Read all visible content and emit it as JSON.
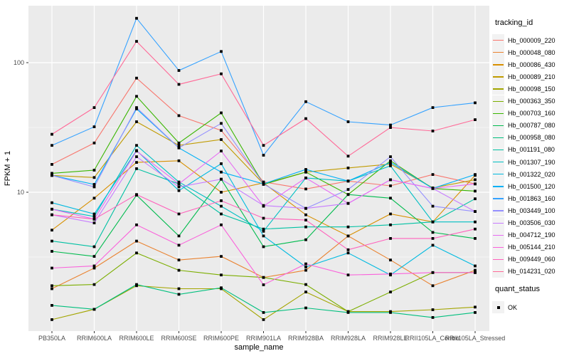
{
  "chart_data": {
    "type": "line",
    "title": "",
    "xlabel": "sample_name",
    "ylabel": "FPKM + 1",
    "y_scale": "log10",
    "y_axis_ticks": [
      "10",
      "100"
    ],
    "y_tick_values": [
      10,
      100
    ],
    "y_minor_tick_values": [
      3.1623,
      31.623
    ],
    "ylim": [
      0.85,
      280
    ],
    "grid": "on",
    "legend_position": "right",
    "marker": {
      "shape": "square",
      "color": "#000000",
      "meaning": "quant_status OK"
    },
    "categories": [
      "PB350LA",
      "RRIM600LA",
      "RRIM600LE",
      "RRIM600SE",
      "RRIM600PE",
      "RRIM901LA",
      "RRIM928BA",
      "RRIM928LA",
      "RRIM928LE",
      "RRII105LA_Control",
      "RRII105LA_Stressed"
    ],
    "series": [
      {
        "name": "Hb_000009_220",
        "color": "#F8766D",
        "values": [
          16.4,
          24,
          76,
          39,
          30,
          12,
          10.6,
          12.2,
          11.2,
          13.7,
          11.6
        ]
      },
      {
        "name": "Hb_000048_080",
        "color": "#EA8331",
        "values": [
          1.8,
          2.6,
          4.2,
          3.0,
          3.2,
          2.2,
          2.5,
          4.6,
          3.0,
          1.9,
          2.5
        ]
      },
      {
        "name": "Hb_000086_430",
        "color": "#D89000",
        "values": [
          5.1,
          9.0,
          17.0,
          17.5,
          10.0,
          11.8,
          6.7,
          4.6,
          6.8,
          5.9,
          13.5
        ]
      },
      {
        "name": "Hb_000089_210",
        "color": "#C09B00",
        "values": [
          13.5,
          13.0,
          35.0,
          23.0,
          25.5,
          11.6,
          14.3,
          15.4,
          16.5,
          10.8,
          12.5
        ]
      },
      {
        "name": "Hb_000098_150",
        "color": "#A3A500",
        "values": [
          1.04,
          1.25,
          1.9,
          1.8,
          1.8,
          1.04,
          1.7,
          1.2,
          1.2,
          1.24,
          1.3
        ]
      },
      {
        "name": "Hb_000363_350",
        "color": "#7CAE00",
        "values": [
          1.9,
          1.94,
          3.4,
          2.5,
          2.3,
          2.2,
          1.94,
          1.2,
          1.7,
          2.4,
          2.4
        ]
      },
      {
        "name": "Hb_000703_160",
        "color": "#39B600",
        "values": [
          14.0,
          14.8,
          55.0,
          24.0,
          41.0,
          11.5,
          14.3,
          9.6,
          17.5,
          10.7,
          10.2
        ]
      },
      {
        "name": "Hb_000787_080",
        "color": "#00BB4E",
        "values": [
          3.5,
          3.2,
          9.5,
          4.6,
          12.6,
          3.8,
          4.3,
          9.6,
          9.0,
          4.9,
          4.4
        ]
      },
      {
        "name": "Hb_000958_080",
        "color": "#00BF7D",
        "values": [
          1.34,
          1.25,
          1.94,
          1.63,
          1.83,
          1.18,
          1.28,
          1.18,
          1.18,
          1.08,
          1.18
        ]
      },
      {
        "name": "Hb_001191_080",
        "color": "#00C1A3",
        "values": [
          4.2,
          3.8,
          15.2,
          11.6,
          6.8,
          5.2,
          5.4,
          5.4,
          5.6,
          5.9,
          8.9
        ]
      },
      {
        "name": "Hb_001307_190",
        "color": "#00BFC4",
        "values": [
          7.4,
          6.5,
          23.0,
          12.0,
          7.8,
          5.0,
          12.9,
          12.2,
          16.0,
          5.9,
          5.9
        ]
      },
      {
        "name": "Hb_001322_020",
        "color": "#00BAE0",
        "values": [
          8.3,
          6.8,
          21.0,
          10.3,
          16.6,
          4.6,
          2.65,
          3.4,
          2.3,
          3.9,
          2.7
        ]
      },
      {
        "name": "Hb_001500_120",
        "color": "#00B0F6",
        "values": [
          13.5,
          11.5,
          44.0,
          22.0,
          14.3,
          11.6,
          15.0,
          12.2,
          17.0,
          10.7,
          13.7
        ]
      },
      {
        "name": "Hb_001863_160",
        "color": "#35A2FF",
        "values": [
          23.0,
          32.0,
          220.0,
          87.0,
          122.0,
          19.3,
          50.0,
          35.0,
          33.0,
          45.0,
          49.0
        ]
      },
      {
        "name": "Hb_003449_100",
        "color": "#9590FF",
        "values": [
          13.5,
          11.0,
          45.0,
          22.0,
          34.0,
          11.6,
          7.5,
          10.5,
          18.8,
          7.8,
          7.1
        ]
      },
      {
        "name": "Hb_003506_030",
        "color": "#C77CFF",
        "values": [
          6.7,
          5.8,
          18.8,
          11.0,
          12.6,
          7.9,
          7.5,
          8.2,
          12.5,
          10.7,
          7.1
        ]
      },
      {
        "name": "Hb_004712_190",
        "color": "#E76BF3",
        "values": [
          7.4,
          6.2,
          20.8,
          11.6,
          20.8,
          7.8,
          12.9,
          8.2,
          12.5,
          10.7,
          11.6
        ]
      },
      {
        "name": "Hb_005144_210",
        "color": "#FA62DB",
        "values": [
          2.6,
          2.7,
          5.6,
          3.9,
          5.6,
          1.93,
          2.8,
          2.3,
          2.34,
          2.4,
          2.4
        ]
      },
      {
        "name": "Hb_009449_060",
        "color": "#FF62BC",
        "values": [
          6.7,
          6.2,
          9.6,
          6.8,
          8.6,
          6.3,
          6.1,
          3.6,
          4.4,
          4.4,
          5.2
        ]
      },
      {
        "name": "Hb_014231_020",
        "color": "#FF6A98",
        "values": [
          28.0,
          45.0,
          146.0,
          68.0,
          82.0,
          23.0,
          37.0,
          19.0,
          31.6,
          29.7,
          36.3
        ]
      }
    ]
  },
  "legend": {
    "tracking_title": "tracking_id",
    "quant_title": "quant_status",
    "quant_ok_label": "OK"
  },
  "theme": {
    "panel_bg": "#EBEBEB",
    "grid_color": "#FFFFFF",
    "legend_key_bg": "#F2F2F2",
    "tick_label_color": "#4D4D4D",
    "tick_mark_color": "#333333",
    "axis_title_color": "#000000"
  }
}
